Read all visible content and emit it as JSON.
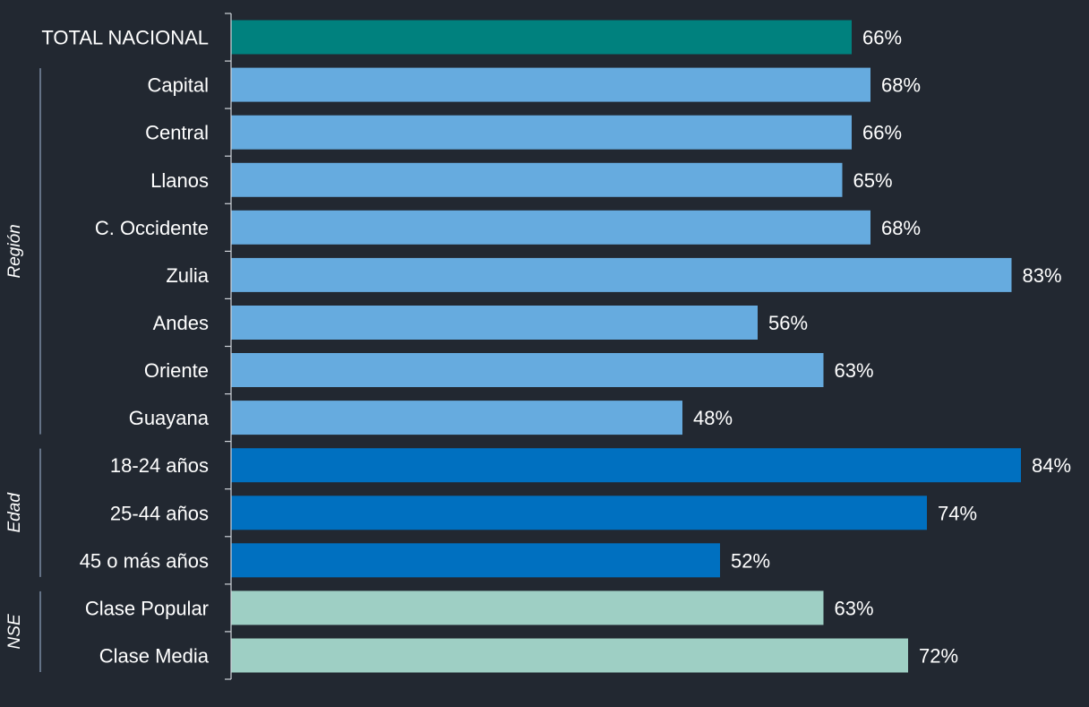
{
  "chart_data": {
    "type": "bar",
    "orientation": "horizontal",
    "title": "",
    "xlabel": "",
    "ylabel": "",
    "xlim": [
      0,
      100
    ],
    "grid": false,
    "value_suffix": "%",
    "categories": [
      "TOTAL NACIONAL",
      "Capital",
      "Central",
      "Llanos",
      "C. Occidente",
      "Zulia",
      "Andes",
      "Oriente",
      "Guayana",
      "18-24 años",
      "25-44 años",
      "45 o más años",
      "Clase Popular",
      "Clase Media"
    ],
    "values": [
      66,
      68,
      66,
      65,
      68,
      83,
      56,
      63,
      48,
      84,
      74,
      52,
      63,
      72
    ],
    "value_labels": [
      "66%",
      "68%",
      "66%",
      "65%",
      "68%",
      "83%",
      "56%",
      "63%",
      "48%",
      "84%",
      "74%",
      "52%",
      "63%",
      "72%"
    ],
    "bar_groups": [
      "total",
      "region",
      "region",
      "region",
      "region",
      "region",
      "region",
      "region",
      "region",
      "edad",
      "edad",
      "edad",
      "nse",
      "nse"
    ],
    "groups": [
      {
        "key": "region",
        "label": "Región",
        "start": 1,
        "end": 8
      },
      {
        "key": "edad",
        "label": "Edad",
        "start": 9,
        "end": 11
      },
      {
        "key": "nse",
        "label": "NSE",
        "start": 12,
        "end": 13
      }
    ],
    "colors": {
      "total": "#00817e",
      "region": "#66abdf",
      "edad": "#0070c0",
      "nse": "#9ecfc4"
    }
  },
  "background_color": "#222831"
}
